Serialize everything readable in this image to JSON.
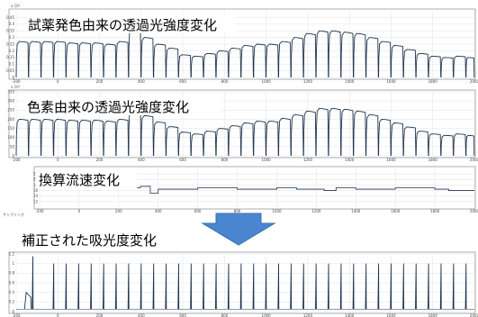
{
  "colors": {
    "trace": "#1f3550",
    "frame": "#9a9a9a",
    "arrow": "#4a86d0",
    "arrow_stroke": "#3a6fb0",
    "background": "#ffffff"
  },
  "arrow": {
    "icon": "down-arrow-icon",
    "direction": "down"
  },
  "chart_data": [
    {
      "type": "line",
      "title": "試薬発色由来の透過光強度変化",
      "exponent_label": "x 10⁴",
      "xlim": [
        -200,
        2000
      ],
      "ylim": [
        0,
        0.5
      ],
      "x_ticks": [
        "-200",
        "0",
        "200",
        "400",
        "600",
        "800",
        "1000",
        "1200",
        "1400",
        "1600",
        "1800",
        "2000"
      ],
      "y_ticks": [
        "0",
        "0.05",
        "0.1",
        "0.15",
        "0.2",
        "0.25",
        "0.3",
        "0.35",
        "0.4",
        "0.45"
      ],
      "segment_starts": [
        -200,
        -140,
        -80,
        -20,
        40,
        100,
        160,
        220,
        280,
        340,
        400,
        460,
        520,
        580,
        640,
        700,
        760,
        820,
        880,
        940,
        1000,
        1060,
        1120,
        1180,
        1240,
        1300,
        1360,
        1420,
        1480,
        1540,
        1600,
        1660,
        1720,
        1780,
        1840,
        1900,
        1960
      ],
      "segment_levels": [
        0.27,
        0.27,
        0.27,
        0.27,
        0.26,
        0.26,
        0.26,
        0.25,
        0.27,
        0.39,
        0.3,
        0.25,
        0.22,
        0.17,
        0.16,
        0.18,
        0.2,
        0.22,
        0.24,
        0.25,
        0.25,
        0.27,
        0.3,
        0.33,
        0.35,
        0.35,
        0.34,
        0.33,
        0.3,
        0.27,
        0.24,
        0.21,
        0.18,
        0.16,
        0.15,
        0.16,
        0.15
      ],
      "low_level": 0.0
    },
    {
      "type": "line",
      "title": "色素由来の透過光強度変化",
      "exponent_label": "x 10⁴",
      "xlim": [
        -200,
        2000
      ],
      "ylim": [
        0,
        350
      ],
      "x_ticks": [
        "-200",
        "0",
        "200",
        "400",
        "600",
        "800",
        "1000",
        "1200",
        "1400",
        "1600",
        "1800",
        "2000"
      ],
      "y_ticks": [
        "0",
        "50",
        "100",
        "150",
        "200",
        "250",
        "300",
        "350"
      ],
      "segment_starts": [
        -200,
        -140,
        -80,
        -20,
        40,
        100,
        160,
        220,
        280,
        340,
        400,
        460,
        520,
        580,
        640,
        700,
        760,
        820,
        880,
        940,
        1000,
        1060,
        1120,
        1180,
        1240,
        1300,
        1360,
        1420,
        1480,
        1540,
        1600,
        1660,
        1720,
        1780,
        1840,
        1900,
        1960
      ],
      "segment_levels": [
        200,
        200,
        200,
        200,
        195,
        195,
        195,
        190,
        200,
        280,
        220,
        185,
        160,
        130,
        120,
        135,
        150,
        165,
        180,
        190,
        190,
        205,
        225,
        245,
        260,
        260,
        255,
        245,
        225,
        200,
        180,
        158,
        135,
        120,
        112,
        120,
        112
      ],
      "low_level": 0
    },
    {
      "type": "line",
      "title": "換算流速変化",
      "xlabel": "サンプリング",
      "xlim": [
        -200,
        2000
      ],
      "ylim": [
        10,
        24
      ],
      "x_ticks": [
        "-200",
        "0",
        "200",
        "400",
        "600",
        "800",
        "1000",
        "1200",
        "1400",
        "1600",
        "1800",
        "2000"
      ],
      "y_ticks": [
        "12",
        "14",
        "16",
        "18",
        "20",
        "22"
      ],
      "step_x": [
        -200,
        150,
        310,
        360,
        400,
        600,
        800,
        1000,
        1100,
        1240,
        1300,
        1400,
        1600,
        1800,
        1870,
        2000
      ],
      "step_y": [
        19,
        17,
        17.5,
        15,
        16.5,
        17,
        16.5,
        17,
        16.5,
        16,
        17,
        16.5,
        17,
        16.5,
        16,
        16
      ]
    },
    {
      "type": "line",
      "title": "補正された吸光度変化",
      "xlim": [
        -200,
        2000
      ],
      "ylim": [
        0,
        1.2
      ],
      "x_ticks": [
        "-200",
        "0",
        "200",
        "400",
        "600",
        "800",
        "1000",
        "1200",
        "1400",
        "1600",
        "1800",
        "2000"
      ],
      "y_ticks": [
        "0",
        "0.2",
        "0.4",
        "0.6",
        "0.8",
        "1",
        "1.2"
      ],
      "bump": {
        "x": [
          -160,
          -130
        ],
        "peak": 0.4
      },
      "spike_x": [
        -120,
        -20,
        40,
        100,
        160,
        220,
        280,
        340,
        400,
        460,
        520,
        580,
        640,
        700,
        760,
        820,
        880,
        940,
        1000,
        1060,
        1120,
        1180,
        1240,
        1300,
        1360,
        1420,
        1480,
        1540,
        1600,
        1660,
        1720,
        1780,
        1840,
        1900,
        1960
      ],
      "spike_peak": [
        1.15,
        1.0,
        1.0,
        1.0,
        1.0,
        1.0,
        1.0,
        1.0,
        1.0,
        1.0,
        1.0,
        1.0,
        1.0,
        1.0,
        1.0,
        1.0,
        1.0,
        1.0,
        1.0,
        1.0,
        1.0,
        1.0,
        1.0,
        1.0,
        1.0,
        1.0,
        1.0,
        1.0,
        1.0,
        1.0,
        1.0,
        1.0,
        1.0,
        1.0,
        1.0
      ]
    }
  ]
}
